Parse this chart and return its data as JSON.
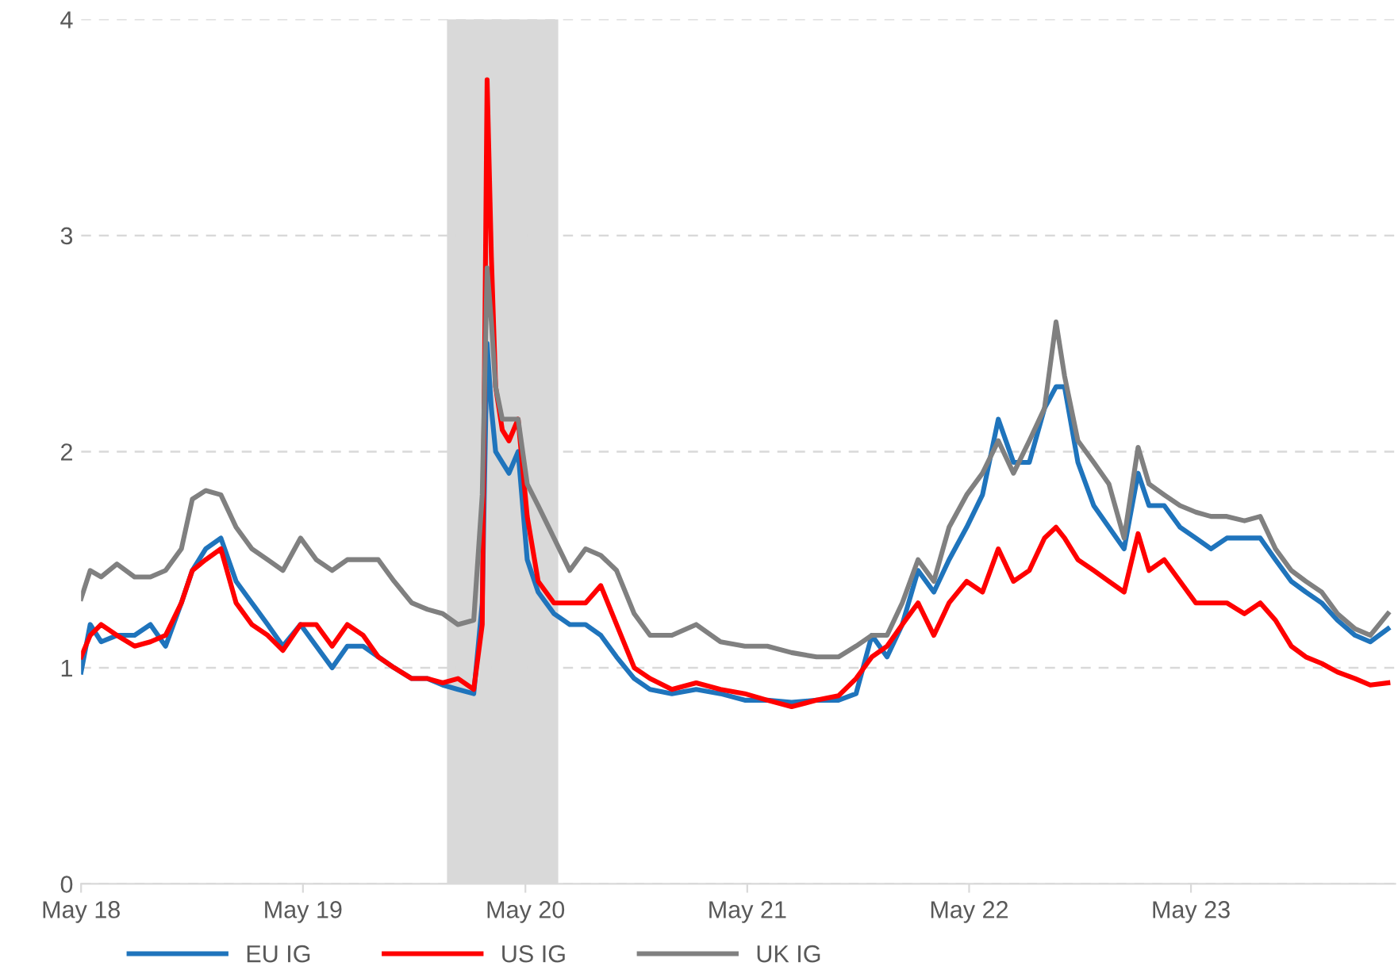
{
  "chart_data": {
    "type": "line",
    "x": [
      "2018-05-01",
      "2018-05-16",
      "2018-06-03",
      "2018-06-29",
      "2018-07-28",
      "2018-08-23",
      "2018-09-17",
      "2018-10-13",
      "2018-10-31",
      "2018-11-22",
      "2018-12-17",
      "2019-01-11",
      "2019-02-06",
      "2019-03-04",
      "2019-03-29",
      "2019-04-27",
      "2019-05-23",
      "2019-06-18",
      "2019-07-13",
      "2019-08-08",
      "2019-09-02",
      "2019-09-28",
      "2019-10-27",
      "2019-11-22",
      "2019-12-17",
      "2020-01-11",
      "2020-02-06",
      "2020-02-20",
      "2020-02-28",
      "2020-03-06",
      "2020-03-13",
      "2020-03-24",
      "2020-04-04",
      "2020-04-19",
      "2020-05-04",
      "2020-05-22",
      "2020-06-17",
      "2020-07-13",
      "2020-08-08",
      "2020-09-02",
      "2020-09-28",
      "2020-10-27",
      "2020-11-22",
      "2020-12-28",
      "2021-02-06",
      "2021-03-18",
      "2021-04-27",
      "2021-06-03",
      "2021-07-13",
      "2021-08-23",
      "2021-09-28",
      "2021-10-27",
      "2021-11-22",
      "2021-12-17",
      "2022-01-11",
      "2022-02-06",
      "2022-03-04",
      "2022-03-29",
      "2022-04-27",
      "2022-05-23",
      "2022-06-18",
      "2022-07-13",
      "2022-08-08",
      "2022-09-02",
      "2022-09-21",
      "2022-10-05",
      "2022-10-27",
      "2022-11-22",
      "2022-12-17",
      "2023-01-11",
      "2023-02-03",
      "2023-02-21",
      "2023-03-18",
      "2023-04-13",
      "2023-05-09",
      "2023-06-03",
      "2023-06-29",
      "2023-07-28",
      "2023-08-23",
      "2023-09-17",
      "2023-10-13",
      "2023-11-06",
      "2023-12-02",
      "2023-12-28",
      "2024-01-26",
      "2024-02-20",
      "2024-03-20"
    ],
    "series": [
      {
        "name": "EU IG",
        "color": "#1f74bc",
        "values": [
          0.98,
          1.2,
          1.12,
          1.15,
          1.15,
          1.2,
          1.1,
          1.3,
          1.45,
          1.55,
          1.6,
          1.4,
          1.3,
          1.2,
          1.1,
          1.2,
          1.1,
          1.0,
          1.1,
          1.1,
          1.05,
          1.0,
          0.95,
          0.95,
          0.92,
          0.9,
          0.88,
          1.3,
          2.5,
          2.2,
          2.0,
          1.95,
          1.9,
          2.0,
          1.5,
          1.35,
          1.25,
          1.2,
          1.2,
          1.15,
          1.05,
          0.95,
          0.9,
          0.88,
          0.9,
          0.88,
          0.85,
          0.85,
          0.84,
          0.85,
          0.85,
          0.88,
          1.15,
          1.05,
          1.2,
          1.45,
          1.35,
          1.5,
          1.65,
          1.8,
          2.15,
          1.95,
          1.95,
          2.2,
          2.3,
          2.3,
          1.95,
          1.75,
          1.65,
          1.55,
          1.9,
          1.75,
          1.75,
          1.65,
          1.6,
          1.55,
          1.6,
          1.6,
          1.6,
          1.5,
          1.4,
          1.35,
          1.3,
          1.22,
          1.15,
          1.12,
          1.18
        ]
      },
      {
        "name": "US IG",
        "color": "#ff0000",
        "values": [
          1.05,
          1.15,
          1.2,
          1.15,
          1.1,
          1.12,
          1.15,
          1.3,
          1.45,
          1.5,
          1.55,
          1.3,
          1.2,
          1.15,
          1.08,
          1.2,
          1.2,
          1.1,
          1.2,
          1.15,
          1.05,
          1.0,
          0.95,
          0.95,
          0.93,
          0.95,
          0.9,
          1.2,
          3.72,
          2.9,
          2.3,
          2.1,
          2.05,
          2.15,
          1.7,
          1.4,
          1.3,
          1.3,
          1.3,
          1.38,
          1.2,
          1.0,
          0.95,
          0.9,
          0.93,
          0.9,
          0.88,
          0.85,
          0.82,
          0.85,
          0.87,
          0.95,
          1.05,
          1.1,
          1.2,
          1.3,
          1.15,
          1.3,
          1.4,
          1.35,
          1.55,
          1.4,
          1.45,
          1.6,
          1.65,
          1.6,
          1.5,
          1.45,
          1.4,
          1.35,
          1.62,
          1.45,
          1.5,
          1.4,
          1.3,
          1.3,
          1.3,
          1.25,
          1.3,
          1.22,
          1.1,
          1.05,
          1.02,
          0.98,
          0.95,
          0.92,
          0.93
        ]
      },
      {
        "name": "UK IG",
        "color": "#808080",
        "values": [
          1.32,
          1.45,
          1.42,
          1.48,
          1.42,
          1.42,
          1.45,
          1.55,
          1.78,
          1.82,
          1.8,
          1.65,
          1.55,
          1.5,
          1.45,
          1.6,
          1.5,
          1.45,
          1.5,
          1.5,
          1.5,
          1.4,
          1.3,
          1.27,
          1.25,
          1.2,
          1.22,
          1.8,
          2.85,
          2.6,
          2.3,
          2.15,
          2.15,
          2.15,
          1.85,
          1.75,
          1.6,
          1.45,
          1.55,
          1.52,
          1.45,
          1.25,
          1.15,
          1.15,
          1.2,
          1.12,
          1.1,
          1.1,
          1.07,
          1.05,
          1.05,
          1.1,
          1.15,
          1.15,
          1.3,
          1.5,
          1.4,
          1.65,
          1.8,
          1.9,
          2.05,
          1.9,
          2.05,
          2.2,
          2.6,
          2.35,
          2.05,
          1.95,
          1.85,
          1.6,
          2.02,
          1.85,
          1.8,
          1.75,
          1.72,
          1.7,
          1.7,
          1.68,
          1.7,
          1.55,
          1.45,
          1.4,
          1.35,
          1.25,
          1.18,
          1.15,
          1.25
        ]
      }
    ],
    "xlim": [
      "2018-05-01",
      "2024-04-01"
    ],
    "xticks": [
      {
        "value": "2018-05-01",
        "label": "May 18"
      },
      {
        "value": "2019-05-01",
        "label": "May 19"
      },
      {
        "value": "2020-05-01",
        "label": "May 20"
      },
      {
        "value": "2021-05-01",
        "label": "May 21"
      },
      {
        "value": "2022-05-01",
        "label": "May 22"
      },
      {
        "value": "2023-05-01",
        "label": "May 23"
      }
    ],
    "ylim": [
      0,
      4
    ],
    "yticks": [
      0,
      1,
      2,
      3,
      4
    ],
    "bands": [
      {
        "axis": "x",
        "from": "2019-12-24",
        "to": "2020-06-24",
        "color": "#d9d9d9"
      }
    ],
    "grid": "y",
    "legend": "bottom",
    "line_style": "solid",
    "marker": "none"
  }
}
